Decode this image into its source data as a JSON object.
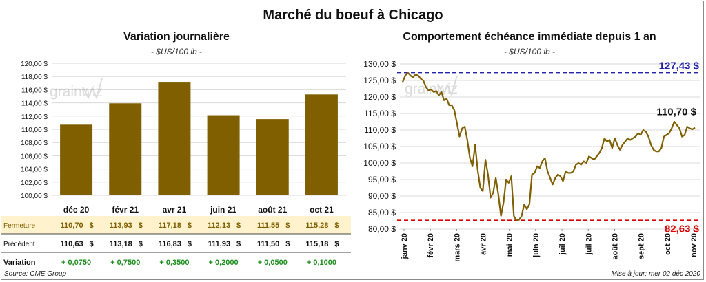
{
  "title": "Marché du boeuf à Chicago",
  "source": "Source: CME Group",
  "updated": "Mise à jour: mer 02 déc 2020",
  "watermark": "grainwiz",
  "colors": {
    "bar": "#7F5F00",
    "highlight_bg": "#FFF2CC",
    "positive": "#1E8E1E",
    "high_line": "#2222AA",
    "low_line": "#DD0000"
  },
  "chart_data": [
    {
      "type": "bar",
      "title": "Variation  journalière",
      "unit": "- $US/100 lb -",
      "categories": [
        "déc 20",
        "févr 21",
        "avr 21",
        "juin 21",
        "août 21",
        "oct 21"
      ],
      "values": [
        110.7,
        113.93,
        117.18,
        112.13,
        111.55,
        115.28
      ],
      "ylim": [
        100,
        120
      ],
      "yticks": [
        "100,00 $",
        "102,00 $",
        "104,00 $",
        "106,00 $",
        "108,00 $",
        "110,00 $",
        "112,00 $",
        "114,00 $",
        "116,00 $",
        "118,00 $",
        "120,00 $"
      ],
      "table": {
        "rows": [
          {
            "label": "Fermeture",
            "values": [
              "110,70",
              "113,93",
              "117,18",
              "112,13",
              "111,55",
              "115,28"
            ],
            "suffix": "$"
          },
          {
            "label": "Précédent",
            "values": [
              "110,63",
              "113,18",
              "116,83",
              "111,93",
              "111,50",
              "115,18"
            ],
            "suffix": "$"
          },
          {
            "label": "Variation",
            "values": [
              "+ 0,0750",
              "+ 0,7500",
              "+ 0,3500",
              "+ 0,2000",
              "+ 0,0500",
              "+ 0,1000"
            ]
          }
        ]
      }
    },
    {
      "type": "line",
      "title": "Comportement  échéance immédiate depuis 1 an",
      "unit": "- $US/100 lb -",
      "ylim": [
        80,
        130
      ],
      "yticks": [
        "80,00 $",
        "85,00 $",
        "90,00 $",
        "95,00 $",
        "100,00 $",
        "105,00 $",
        "110,00 $",
        "115,00 $",
        "120,00 $",
        "125,00 $",
        "130,00 $"
      ],
      "xticks": [
        "janv 20",
        "févr 20",
        "mars 20",
        "avr 20",
        "mai 20",
        "juin 20",
        "juil 20",
        "juil 20",
        "août 20",
        "sept 20",
        "oct 20",
        "nov 20"
      ],
      "high": {
        "value": 127.43,
        "label": "127,43 $"
      },
      "low": {
        "value": 82.63,
        "label": "82,63 $"
      },
      "last": {
        "value": 110.7,
        "label": "110,70 $"
      },
      "series": [
        {
          "values": [
            124.5,
            126.5,
            127.4,
            126.5,
            126.0,
            126.8,
            126.5,
            125.5,
            125.0,
            123.0,
            122.0,
            122.3,
            121.5,
            121.8,
            120.5,
            121.5,
            119.0,
            119.5,
            117.5,
            117.5,
            116.0,
            112.0,
            108.0,
            110.5,
            111.0,
            107.0,
            101.5,
            99.0,
            105.5,
            98.0,
            92.5,
            91.5,
            101.0,
            96.5,
            89.5,
            91.0,
            95.5,
            90.5,
            84.0,
            88.0,
            95.0,
            94.0,
            96.0,
            84.0,
            82.6,
            82.8,
            84.0,
            87.5,
            86.0,
            87.5,
            96.5,
            97.0,
            99.0,
            98.5,
            100.5,
            101.5,
            97.5,
            95.5,
            93.5,
            95.5,
            96.5,
            96.0,
            94.5,
            97.5,
            97.0,
            97.0,
            97.5,
            99.5,
            100.0,
            99.5,
            100.5,
            100.0,
            102.0,
            101.5,
            101.0,
            102.0,
            103.0,
            104.5,
            107.5,
            106.5,
            107.0,
            104.5,
            107.5,
            105.5,
            104.0,
            105.5,
            106.5,
            107.5,
            107.0,
            107.5,
            108.0,
            109.0,
            108.5,
            110.0,
            109.5,
            108.0,
            105.5,
            104.0,
            103.5,
            103.5,
            104.5,
            108.0,
            108.5,
            109.0,
            110.5,
            112.5,
            111.5,
            110.5,
            108.0,
            108.5,
            111.0,
            110.5,
            110.2,
            110.7
          ]
        }
      ]
    }
  ]
}
